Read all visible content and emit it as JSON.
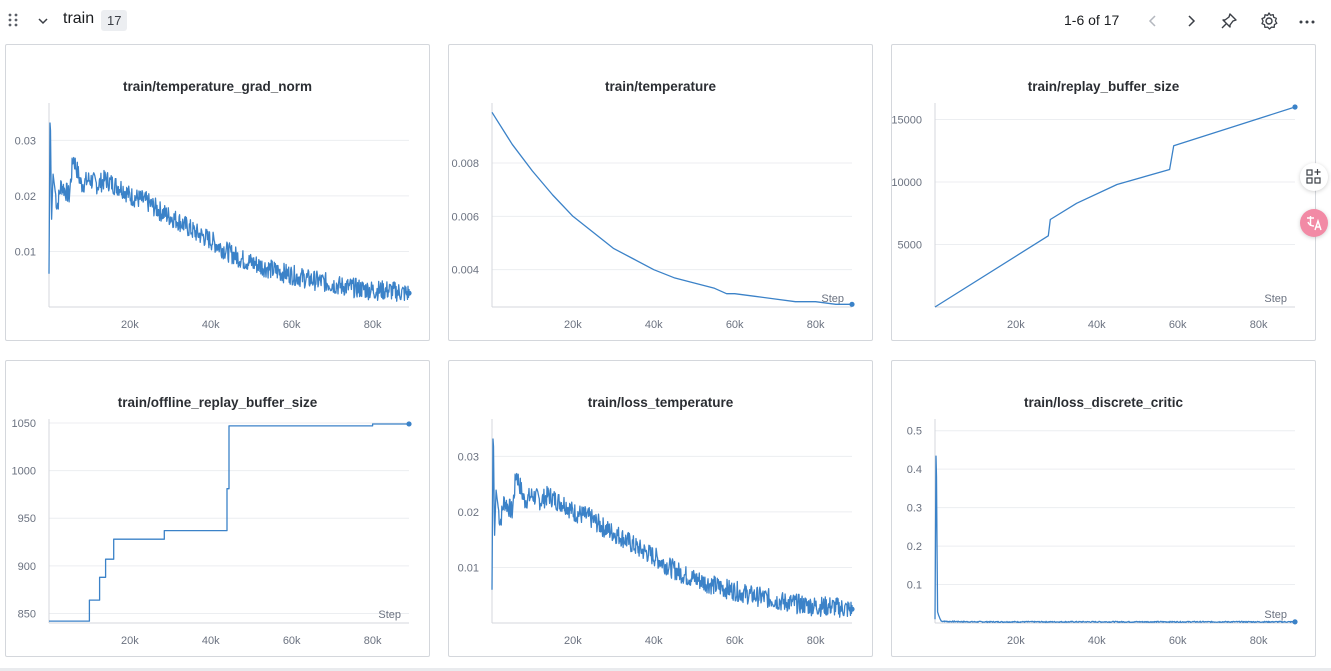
{
  "section": {
    "title": "train",
    "count": "17",
    "pager": "1-6 of 17"
  },
  "icons": {
    "drag": "drag-handle-icon",
    "collapse": "chevron-down-icon",
    "prev": "chevron-left-icon",
    "next": "chevron-right-icon",
    "pin": "pin-icon",
    "settings": "gear-icon",
    "more": "more-horizontal-icon",
    "side1": "add-panel-icon",
    "side2": "translate-icon"
  },
  "colors": {
    "line": "#3b82c8",
    "grid": "#eceef1",
    "axis": "#d4d7dc",
    "tick": "#6b7280"
  },
  "chart_data": [
    {
      "type": "line",
      "title": "train/temperature_grad_norm",
      "xlabel": "",
      "ylabel": "",
      "xticks": [
        20000,
        40000,
        60000,
        80000
      ],
      "xtick_labels": [
        "20k",
        "40k",
        "60k",
        "80k"
      ],
      "yticks": [
        0.01,
        0.02,
        0.03
      ],
      "ytick_labels": [
        "0.01",
        "0.02",
        "0.03"
      ],
      "xlim": [
        0,
        89000
      ],
      "ylim": [
        0,
        0.036
      ],
      "series": [
        {
          "points": [
            [
              0,
              0.006
            ],
            [
              300,
              0.038
            ],
            [
              600,
              0.015
            ],
            [
              1000,
              0.024
            ],
            [
              2000,
              0.018
            ],
            [
              3000,
              0.022
            ],
            [
              5000,
              0.02
            ],
            [
              6000,
              0.027
            ],
            [
              8000,
              0.022
            ],
            [
              10000,
              0.023
            ],
            [
              12000,
              0.022
            ],
            [
              14000,
              0.023
            ],
            [
              16000,
              0.022
            ],
            [
              18000,
              0.0215
            ],
            [
              20000,
              0.02
            ],
            [
              24000,
              0.019
            ],
            [
              28000,
              0.017
            ],
            [
              32000,
              0.0155
            ],
            [
              36000,
              0.0135
            ],
            [
              40000,
              0.012
            ],
            [
              44000,
              0.01
            ],
            [
              48000,
              0.0085
            ],
            [
              52000,
              0.0075
            ],
            [
              56000,
              0.0065
            ],
            [
              60000,
              0.0058
            ],
            [
              64000,
              0.005
            ],
            [
              68000,
              0.0045
            ],
            [
              72000,
              0.0038
            ],
            [
              76000,
              0.0034
            ],
            [
              80000,
              0.003
            ],
            [
              84000,
              0.003
            ],
            [
              88000,
              0.0025
            ],
            [
              89000,
              0.0025
            ]
          ],
          "noise": 0.0018
        }
      ],
      "step_label": ""
    },
    {
      "type": "line",
      "title": "train/temperature",
      "xlabel": "",
      "ylabel": "",
      "xticks": [
        20000,
        40000,
        60000,
        80000
      ],
      "xtick_labels": [
        "20k",
        "40k",
        "60k",
        "80k"
      ],
      "yticks": [
        0.004,
        0.006,
        0.008
      ],
      "ytick_labels": [
        "0.004",
        "0.006",
        "0.008"
      ],
      "xlim": [
        0,
        89000
      ],
      "ylim": [
        0.0026,
        0.0101
      ],
      "series": [
        {
          "points": [
            [
              0,
              0.0099
            ],
            [
              5000,
              0.0087
            ],
            [
              10000,
              0.0077
            ],
            [
              15000,
              0.0068
            ],
            [
              20000,
              0.006
            ],
            [
              25000,
              0.0054
            ],
            [
              30000,
              0.0048
            ],
            [
              35000,
              0.0044
            ],
            [
              40000,
              0.004
            ],
            [
              45000,
              0.0037
            ],
            [
              50000,
              0.0035
            ],
            [
              55000,
              0.0033
            ],
            [
              58000,
              0.0031
            ],
            [
              60000,
              0.0031
            ],
            [
              65000,
              0.003
            ],
            [
              70000,
              0.0029
            ],
            [
              75000,
              0.0028
            ],
            [
              80000,
              0.0028
            ],
            [
              85000,
              0.0027
            ],
            [
              89000,
              0.0027
            ]
          ],
          "noise": 0
        }
      ],
      "step_label": "Step"
    },
    {
      "type": "line",
      "title": "train/replay_buffer_size",
      "xlabel": "",
      "ylabel": "",
      "xticks": [
        20000,
        40000,
        60000,
        80000
      ],
      "xtick_labels": [
        "20k",
        "40k",
        "60k",
        "80k"
      ],
      "yticks": [
        5000,
        10000,
        15000
      ],
      "ytick_labels": [
        "5000",
        "10000",
        "15000"
      ],
      "xlim": [
        0,
        89000
      ],
      "ylim": [
        0,
        16000
      ],
      "series": [
        {
          "points": [
            [
              0,
              0
            ],
            [
              28000,
              5700
            ],
            [
              28500,
              7000
            ],
            [
              35000,
              8300
            ],
            [
              45000,
              9800
            ],
            [
              58000,
              11000
            ],
            [
              59000,
              12900
            ],
            [
              89000,
              16000
            ]
          ],
          "noise": 0
        }
      ],
      "step_label": "Step"
    },
    {
      "type": "line",
      "title": "train/offline_replay_buffer_size",
      "xlabel": "",
      "ylabel": "",
      "xticks": [
        20000,
        40000,
        60000,
        80000
      ],
      "xtick_labels": [
        "20k",
        "40k",
        "60k",
        "80k"
      ],
      "yticks": [
        850,
        900,
        950,
        1000,
        1050
      ],
      "ytick_labels": [
        "850",
        "900",
        "950",
        "1000",
        "1050"
      ],
      "xlim": [
        0,
        89000
      ],
      "ylim": [
        840,
        1050
      ],
      "series": [
        {
          "points": [
            [
              0,
              842
            ],
            [
              10000,
              842
            ],
            [
              10000,
              864
            ],
            [
              12500,
              864
            ],
            [
              12500,
              888
            ],
            [
              14000,
              888
            ],
            [
              14000,
              907
            ],
            [
              16000,
              907
            ],
            [
              16000,
              928
            ],
            [
              28500,
              928
            ],
            [
              28500,
              937
            ],
            [
              44000,
              937
            ],
            [
              44000,
              981
            ],
            [
              44500,
              981
            ],
            [
              44500,
              1047
            ],
            [
              80000,
              1047
            ],
            [
              80000,
              1049
            ],
            [
              89000,
              1049
            ]
          ],
          "noise": 0
        }
      ],
      "step_label": "Step"
    },
    {
      "type": "line",
      "title": "train/loss_temperature",
      "xlabel": "",
      "ylabel": "",
      "xticks": [
        20000,
        40000,
        60000,
        80000
      ],
      "xtick_labels": [
        "20k",
        "40k",
        "60k",
        "80k"
      ],
      "yticks": [
        0.01,
        0.02,
        0.03
      ],
      "ytick_labels": [
        "0.01",
        "0.02",
        "0.03"
      ],
      "xlim": [
        0,
        89000
      ],
      "ylim": [
        0,
        0.036
      ],
      "series": [
        {
          "points": [
            [
              0,
              0.006
            ],
            [
              300,
              0.038
            ],
            [
              600,
              0.015
            ],
            [
              1000,
              0.024
            ],
            [
              2000,
              0.018
            ],
            [
              3000,
              0.022
            ],
            [
              5000,
              0.02
            ],
            [
              6000,
              0.027
            ],
            [
              8000,
              0.022
            ],
            [
              10000,
              0.023
            ],
            [
              12000,
              0.022
            ],
            [
              14000,
              0.023
            ],
            [
              16000,
              0.022
            ],
            [
              18000,
              0.0215
            ],
            [
              20000,
              0.02
            ],
            [
              24000,
              0.019
            ],
            [
              28000,
              0.017
            ],
            [
              32000,
              0.0155
            ],
            [
              36000,
              0.0135
            ],
            [
              40000,
              0.012
            ],
            [
              44000,
              0.01
            ],
            [
              48000,
              0.0085
            ],
            [
              52000,
              0.0075
            ],
            [
              56000,
              0.0065
            ],
            [
              60000,
              0.0058
            ],
            [
              64000,
              0.005
            ],
            [
              68000,
              0.0045
            ],
            [
              72000,
              0.0038
            ],
            [
              76000,
              0.0034
            ],
            [
              80000,
              0.003
            ],
            [
              84000,
              0.003
            ],
            [
              88000,
              0.0025
            ],
            [
              89000,
              0.0025
            ]
          ],
          "noise": 0.0018
        }
      ],
      "step_label": ""
    },
    {
      "type": "line",
      "title": "train/loss_discrete_critic",
      "xlabel": "",
      "ylabel": "",
      "xticks": [
        20000,
        40000,
        60000,
        80000
      ],
      "xtick_labels": [
        "20k",
        "40k",
        "60k",
        "80k"
      ],
      "yticks": [
        0.1,
        0.2,
        0.3,
        0.4,
        0.5
      ],
      "ytick_labels": [
        "0.1",
        "0.2",
        "0.3",
        "0.4",
        "0.5"
      ],
      "xlim": [
        0,
        89000
      ],
      "ylim": [
        0,
        0.52
      ],
      "series": [
        {
          "points": [
            [
              0,
              0.01
            ],
            [
              300,
              0.51
            ],
            [
              600,
              0.03
            ],
            [
              900,
              0.02
            ],
            [
              1500,
              0.005
            ],
            [
              3000,
              0.004
            ],
            [
              10000,
              0.003
            ],
            [
              30000,
              0.003
            ],
            [
              50000,
              0.003
            ],
            [
              70000,
              0.003
            ],
            [
              89000,
              0.003
            ]
          ],
          "noise": 0.0015
        }
      ],
      "step_label": "Step"
    }
  ]
}
